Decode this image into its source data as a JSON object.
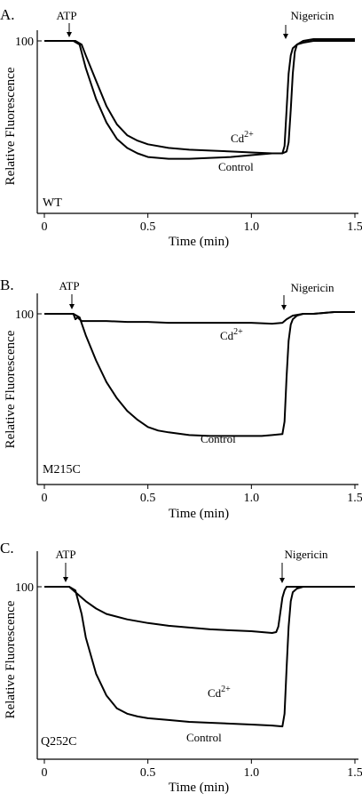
{
  "figure": {
    "panels": [
      {
        "letter": "A.",
        "sample": "WT",
        "annotations": [
          {
            "text": "ATP",
            "x": 0.14
          },
          {
            "text": "Nigericin",
            "x": 1.16
          }
        ],
        "series_labels": [
          {
            "text": "Cd2+",
            "base": "Cd",
            "sup": "2+"
          },
          {
            "text": "Control",
            "base": "Control",
            "sup": ""
          }
        ]
      },
      {
        "letter": "B.",
        "sample": "M215C",
        "annotations": [
          {
            "text": "ATP",
            "x": 0.14
          },
          {
            "text": "Nigericin",
            "x": 1.16
          }
        ],
        "series_labels": [
          {
            "text": "Cd2+",
            "base": "Cd",
            "sup": "2+"
          },
          {
            "text": "Control",
            "base": "Control",
            "sup": ""
          }
        ]
      },
      {
        "letter": "C.",
        "sample": "Q252C",
        "annotations": [
          {
            "text": "ATP",
            "x": 0.12
          },
          {
            "text": "Nigericin",
            "x": 1.14
          }
        ],
        "series_labels": [
          {
            "text": "Cd2+",
            "base": "Cd",
            "sup": "2+"
          },
          {
            "text": "Control",
            "base": "Control",
            "sup": ""
          }
        ]
      }
    ]
  },
  "chart_data": [
    {
      "type": "line",
      "panel": "A.",
      "xlabel": "Time (min)",
      "ylabel": "Relative Fluorescence",
      "xlim": [
        0,
        1.5
      ],
      "ylim": [
        0,
        110
      ],
      "x_ticks": [
        "0",
        "0.5",
        "1.0",
        "1.5"
      ],
      "x_tick_values": [
        0,
        0.5,
        1.0,
        1.5
      ],
      "y_ticks": [
        "100"
      ],
      "y_tick_values": [
        100
      ],
      "annotations": [
        "ATP",
        "Nigericin"
      ],
      "series": [
        {
          "name": "Control",
          "x": [
            0,
            0.14,
            0.17,
            0.2,
            0.25,
            0.3,
            0.35,
            0.4,
            0.45,
            0.5,
            0.55,
            0.6,
            0.7,
            0.8,
            0.9,
            1.0,
            1.05,
            1.1,
            1.15,
            1.16,
            1.17,
            1.18,
            1.19,
            1.2,
            1.22,
            1.25,
            1.3,
            1.4,
            1.5
          ],
          "y": [
            100,
            100,
            98,
            85,
            68,
            55,
            46,
            41,
            38,
            36,
            35.5,
            35,
            35,
            35.5,
            36,
            37,
            37.5,
            38,
            38,
            42,
            62,
            82,
            92,
            96,
            98,
            99,
            100,
            100,
            100
          ]
        },
        {
          "name": "Cd2+",
          "x": [
            0,
            0.15,
            0.18,
            0.2,
            0.25,
            0.3,
            0.35,
            0.4,
            0.45,
            0.5,
            0.6,
            0.7,
            0.8,
            0.9,
            1.0,
            1.1,
            1.15,
            1.17,
            1.18,
            1.19,
            1.2,
            1.21,
            1.22,
            1.25,
            1.3,
            1.4,
            1.5
          ],
          "y": [
            100,
            100,
            98,
            92,
            78,
            64,
            54,
            48,
            45,
            43,
            41,
            40,
            39.5,
            39,
            38.5,
            38,
            38,
            39,
            44,
            62,
            82,
            94,
            98,
            100,
            101,
            101,
            101
          ]
        }
      ]
    },
    {
      "type": "line",
      "panel": "B.",
      "xlabel": "Time (min)",
      "ylabel": "Relative Fluorescence",
      "xlim": [
        0,
        1.5
      ],
      "ylim": [
        0,
        110
      ],
      "x_ticks": [
        "0",
        "0.5",
        "1.0",
        "1.5"
      ],
      "x_tick_values": [
        0,
        0.5,
        1.0,
        1.5
      ],
      "y_ticks": [
        "100"
      ],
      "y_tick_values": [
        100
      ],
      "annotations": [
        "ATP",
        "Nigericin"
      ],
      "series": [
        {
          "name": "Control",
          "x": [
            0,
            0.14,
            0.17,
            0.2,
            0.25,
            0.3,
            0.35,
            0.4,
            0.45,
            0.5,
            0.55,
            0.6,
            0.7,
            0.8,
            0.9,
            1.0,
            1.05,
            1.1,
            1.15,
            1.16,
            1.17,
            1.18,
            1.19,
            1.2,
            1.22,
            1.25,
            1.3,
            1.4,
            1.5
          ],
          "y": [
            100,
            100,
            98,
            88,
            74,
            62,
            53,
            46,
            41,
            37,
            35,
            34,
            32.5,
            32,
            32,
            32,
            32,
            32.5,
            33,
            40,
            65,
            85,
            94,
            97,
            99,
            100,
            100,
            101,
            101
          ]
        },
        {
          "name": "Cd2+",
          "x": [
            0,
            0.14,
            0.15,
            0.16,
            0.18,
            0.2,
            0.3,
            0.4,
            0.5,
            0.6,
            0.7,
            0.8,
            0.9,
            1.0,
            1.1,
            1.15,
            1.17,
            1.2,
            1.25,
            1.3,
            1.4,
            1.5
          ],
          "y": [
            100,
            100,
            97,
            98,
            96,
            96,
            96,
            95.5,
            95.5,
            95,
            95,
            95,
            95,
            95,
            94.5,
            95,
            97,
            99,
            100,
            100,
            101,
            101
          ]
        }
      ]
    },
    {
      "type": "line",
      "panel": "C.",
      "xlabel": "Time (min)",
      "ylabel": "Relative Fluorescence",
      "xlim": [
        0,
        1.5
      ],
      "ylim": [
        0,
        110
      ],
      "x_ticks": [
        "0",
        "0.5",
        "1.0",
        "1.5"
      ],
      "x_tick_values": [
        0,
        0.5,
        1.0,
        1.5
      ],
      "y_ticks": [
        "100"
      ],
      "y_tick_values": [
        100
      ],
      "annotations": [
        "ATP",
        "Nigericin"
      ],
      "series": [
        {
          "name": "Control",
          "x": [
            0,
            0.12,
            0.15,
            0.18,
            0.2,
            0.25,
            0.3,
            0.35,
            0.4,
            0.45,
            0.5,
            0.6,
            0.7,
            0.8,
            0.9,
            1.0,
            1.1,
            1.15,
            1.16,
            1.17,
            1.18,
            1.19,
            1.2,
            1.22,
            1.25,
            1.3,
            1.4,
            1.5
          ],
          "y": [
            100,
            100,
            98,
            85,
            72,
            52,
            40,
            33,
            30,
            28.5,
            27.5,
            26.5,
            25.5,
            25,
            24.5,
            24,
            23.5,
            23,
            30,
            55,
            78,
            92,
            97,
            99,
            100,
            100,
            100,
            100
          ]
        },
        {
          "name": "Cd2+",
          "x": [
            0,
            0.12,
            0.15,
            0.2,
            0.25,
            0.3,
            0.4,
            0.5,
            0.6,
            0.7,
            0.8,
            0.9,
            1.0,
            1.05,
            1.1,
            1.12,
            1.13,
            1.14,
            1.15,
            1.16,
            1.17,
            1.2,
            1.25,
            1.3,
            1.4,
            1.5
          ],
          "y": [
            100,
            100,
            97,
            92,
            88,
            85,
            82,
            80,
            78.5,
            77.5,
            76.5,
            76,
            75.5,
            75,
            74.5,
            75,
            78,
            86,
            94,
            98,
            100,
            100,
            100,
            100,
            100,
            100
          ]
        }
      ]
    }
  ]
}
